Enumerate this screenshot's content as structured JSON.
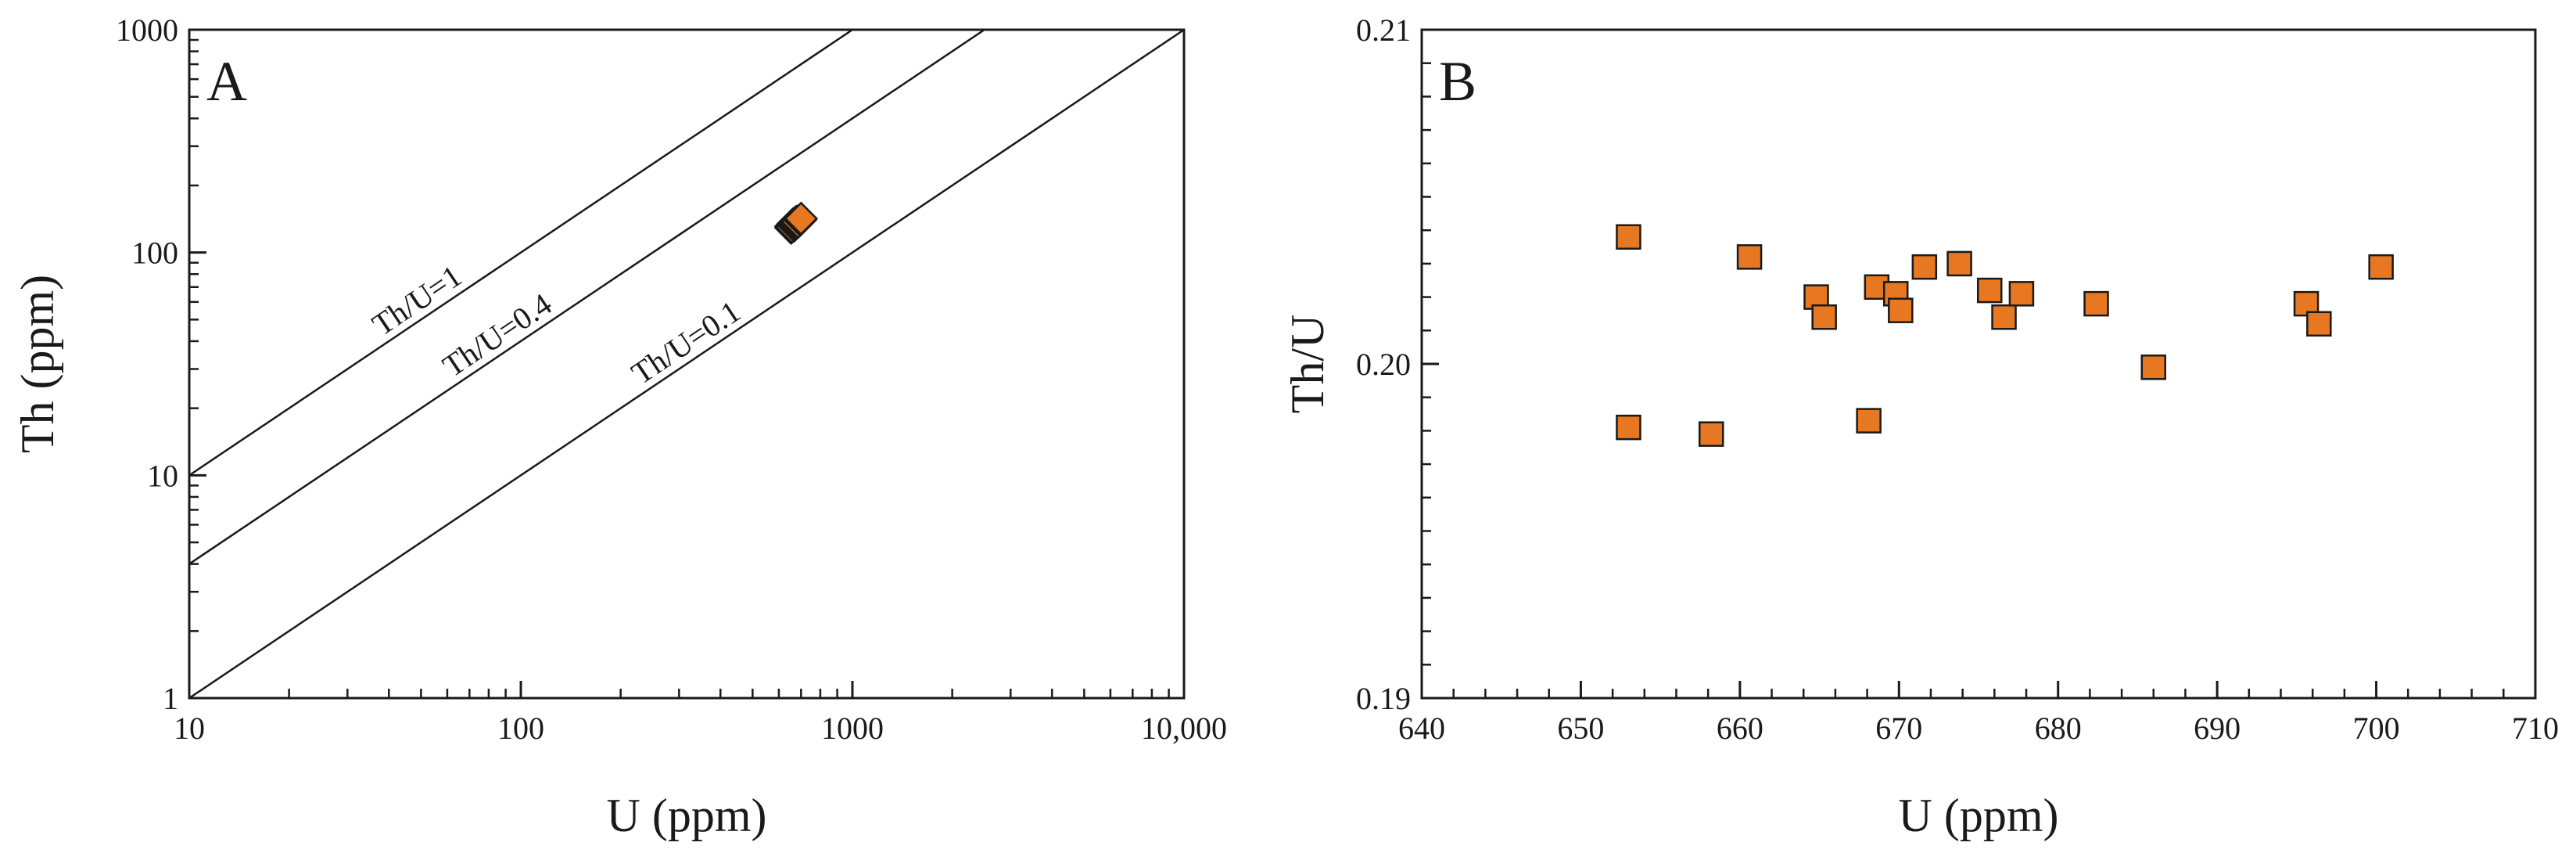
{
  "chart_data": [
    {
      "type": "scatter",
      "panel_label": "A",
      "xlabel": "U (ppm)",
      "ylabel": "Th (ppm)",
      "xscale": "log",
      "yscale": "log",
      "xlim": [
        10,
        10000
      ],
      "ylim": [
        1,
        1000
      ],
      "xticks": [
        10,
        100,
        1000,
        10000
      ],
      "xtick_labels": [
        "10",
        "100",
        "1000",
        "10,000"
      ],
      "yticks": [
        1,
        10,
        100,
        1000
      ],
      "ytick_labels": [
        "1",
        "10",
        "100",
        "1000"
      ],
      "grid": false,
      "marker": "diamond",
      "marker_color": "#e87722",
      "reference_lines": [
        {
          "label": "Th/U=1",
          "ratio": 1
        },
        {
          "label": "Th/U=0.4",
          "ratio": 0.4
        },
        {
          "label": "Th/U=0.1",
          "ratio": 0.1
        }
      ],
      "points": [
        {
          "x": 653,
          "y": 131
        },
        {
          "x": 653,
          "y": 129
        },
        {
          "x": 658,
          "y": 130
        },
        {
          "x": 661,
          "y": 134
        },
        {
          "x": 665,
          "y": 134
        },
        {
          "x": 665,
          "y": 134
        },
        {
          "x": 668,
          "y": 132
        },
        {
          "x": 669,
          "y": 135
        },
        {
          "x": 670,
          "y": 135
        },
        {
          "x": 670,
          "y": 135
        },
        {
          "x": 672,
          "y": 136
        },
        {
          "x": 674,
          "y": 137
        },
        {
          "x": 676,
          "y": 136
        },
        {
          "x": 677,
          "y": 136
        },
        {
          "x": 678,
          "y": 137
        },
        {
          "x": 682,
          "y": 138
        },
        {
          "x": 686,
          "y": 137
        },
        {
          "x": 696,
          "y": 140
        },
        {
          "x": 696,
          "y": 140
        },
        {
          "x": 700,
          "y": 142
        }
      ]
    },
    {
      "type": "scatter",
      "panel_label": "B",
      "xlabel": "U (ppm)",
      "ylabel": "Th/U",
      "xlim": [
        640,
        710
      ],
      "ylim": [
        0.19,
        0.21
      ],
      "xticks": [
        640,
        650,
        660,
        670,
        680,
        690,
        700,
        710
      ],
      "xtick_labels": [
        "640",
        "650",
        "660",
        "670",
        "680",
        "690",
        "700",
        "710"
      ],
      "yticks": [
        0.19,
        0.2,
        0.21
      ],
      "ytick_labels": [
        "0.19",
        "0.20",
        "0.21"
      ],
      "grid": false,
      "marker": "square",
      "marker_color": "#e87722",
      "points": [
        {
          "x": 653.0,
          "y": 0.2038
        },
        {
          "x": 653.0,
          "y": 0.1981
        },
        {
          "x": 658.2,
          "y": 0.1979
        },
        {
          "x": 660.6,
          "y": 0.2032
        },
        {
          "x": 664.8,
          "y": 0.202
        },
        {
          "x": 665.3,
          "y": 0.2014
        },
        {
          "x": 668.1,
          "y": 0.1983
        },
        {
          "x": 668.6,
          "y": 0.2023
        },
        {
          "x": 669.8,
          "y": 0.2021
        },
        {
          "x": 670.1,
          "y": 0.2016
        },
        {
          "x": 671.6,
          "y": 0.2029
        },
        {
          "x": 673.8,
          "y": 0.203
        },
        {
          "x": 675.7,
          "y": 0.2022
        },
        {
          "x": 676.6,
          "y": 0.2014
        },
        {
          "x": 677.7,
          "y": 0.2021
        },
        {
          "x": 682.4,
          "y": 0.2018
        },
        {
          "x": 686.0,
          "y": 0.1999
        },
        {
          "x": 695.6,
          "y": 0.2018
        },
        {
          "x": 696.4,
          "y": 0.2012
        },
        {
          "x": 700.3,
          "y": 0.2029
        }
      ]
    }
  ]
}
